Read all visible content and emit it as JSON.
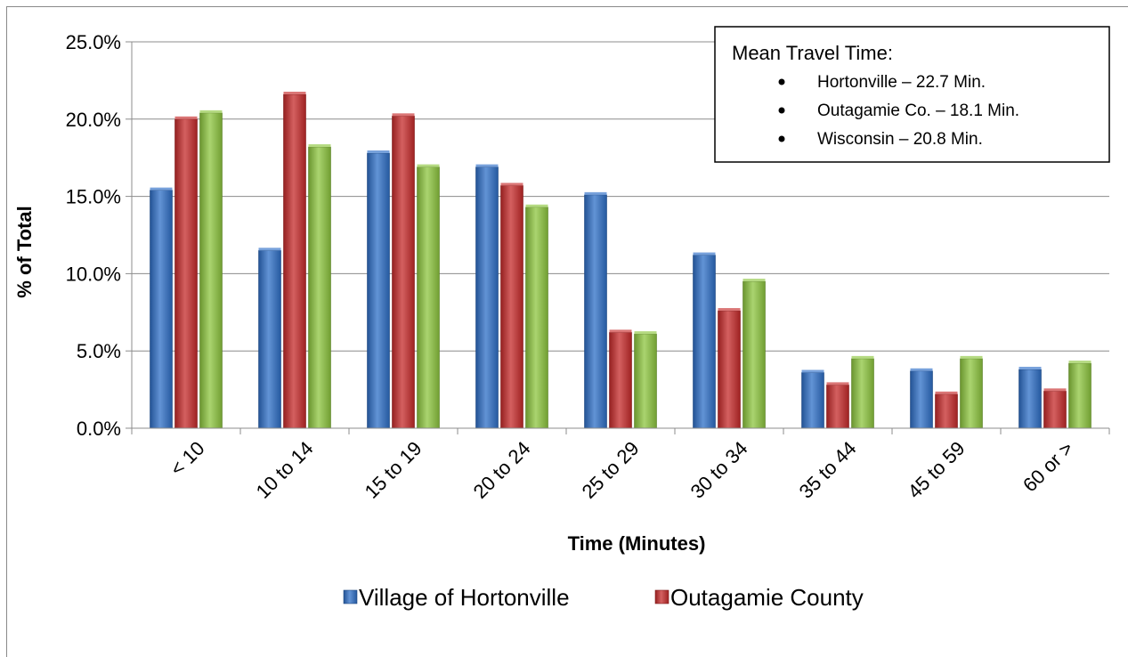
{
  "chart_data": {
    "type": "bar",
    "categories": [
      "< 10",
      "10 to 14",
      "15 to 19",
      "20 to 24",
      "25 to 29",
      "30 to 34",
      "35 to 44",
      "45 to 59",
      "60 or >"
    ],
    "series": [
      {
        "name": "Village of Hortonville",
        "color": "#2e6fc7",
        "values": [
          15.4,
          11.5,
          17.8,
          16.9,
          15.1,
          11.2,
          3.6,
          3.7,
          3.8
        ]
      },
      {
        "name": "Outagamie County",
        "color": "#c62b2b",
        "values": [
          20.0,
          21.6,
          20.2,
          15.7,
          6.2,
          7.6,
          2.8,
          2.2,
          2.4
        ]
      },
      {
        "name": "",
        "color": "#8dc63f",
        "values": [
          20.4,
          18.2,
          16.9,
          14.3,
          6.1,
          9.5,
          4.5,
          4.5,
          4.2
        ]
      }
    ],
    "xlabel": "Time (Minutes)",
    "ylabel": "% of Total",
    "ylim": [
      0,
      25
    ],
    "yticks": [
      "0.0%",
      "5.0%",
      "10.0%",
      "15.0%",
      "20.0%",
      "25.0%"
    ],
    "grid": true,
    "legend_position": "bottom",
    "legend": [
      "Village of Hortonville",
      "Outagamie County"
    ],
    "annotation": {
      "title": "Mean Travel Time:",
      "items": [
        "Hortonville – 22.7 Min.",
        "Outagamie Co. – 18.1 Min.",
        "Wisconsin – 20.8 Min."
      ]
    }
  }
}
